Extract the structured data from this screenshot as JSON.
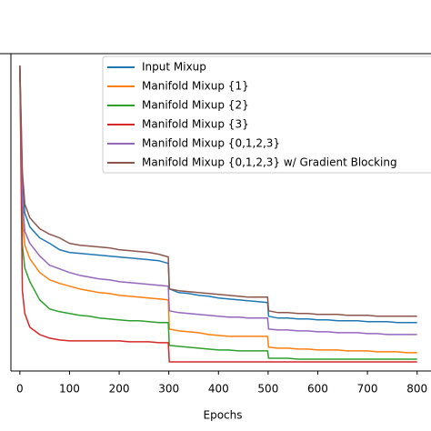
{
  "chart_data": {
    "type": "line",
    "xlabel": "Epochs",
    "x": [
      0,
      5,
      10,
      20,
      40,
      60,
      80,
      100,
      120,
      140,
      160,
      180,
      200,
      220,
      240,
      260,
      280,
      299,
      301,
      320,
      340,
      360,
      380,
      400,
      420,
      440,
      460,
      480,
      499,
      501,
      520,
      540,
      560,
      580,
      600,
      620,
      640,
      660,
      680,
      700,
      720,
      740,
      760,
      780,
      800
    ],
    "series": [
      {
        "name": "Input Mixup",
        "color": "#1f77b4",
        "values": [
          335,
          208,
          173,
          158,
          146,
          140,
          133,
          130,
          129,
          128,
          127,
          126,
          125,
          124,
          123,
          122,
          121,
          118,
          90,
          86,
          85,
          83,
          82,
          80,
          79,
          78,
          77,
          76,
          75,
          60,
          58,
          58,
          57,
          57,
          56,
          56,
          55,
          55,
          55,
          54,
          54,
          54,
          53,
          53,
          53
        ]
      },
      {
        "name": "Manifold Mixup {1}",
        "color": "#ff7f0e",
        "values": [
          335,
          168,
          138,
          123,
          108,
          100,
          96,
          93,
          90,
          88,
          86,
          85,
          83,
          82,
          81,
          80,
          79,
          78,
          46,
          44,
          43,
          42,
          40,
          39,
          38,
          38,
          38,
          38,
          38,
          26,
          25,
          25,
          24,
          24,
          23,
          23,
          23,
          22,
          22,
          22,
          21,
          21,
          21,
          20,
          20
        ]
      },
      {
        "name": "Manifold Mixup {2}",
        "color": "#2ca02c",
        "values": [
          335,
          138,
          113,
          98,
          78,
          68,
          65,
          63,
          61,
          60,
          58,
          57,
          56,
          55,
          55,
          54,
          53,
          53,
          28,
          27,
          26,
          25,
          24,
          23,
          23,
          22,
          22,
          22,
          22,
          14,
          14,
          14,
          13,
          13,
          13,
          13,
          13,
          13,
          13,
          13,
          13,
          13,
          13,
          13,
          13
        ]
      },
      {
        "name": "Manifold Mixup {3}",
        "color": "#d62728",
        "values": [
          335,
          88,
          63,
          48,
          40,
          36,
          34,
          33,
          33,
          33,
          33,
          33,
          33,
          32,
          32,
          32,
          31,
          31,
          10,
          10,
          10,
          10,
          10,
          10,
          10,
          10,
          10,
          10,
          10,
          10,
          10,
          10,
          10,
          10,
          10,
          10,
          10,
          10,
          10,
          10,
          10,
          10,
          10,
          10,
          10
        ]
      },
      {
        "name": "Manifold Mixup {0,1,2,3}",
        "color": "#9467bd",
        "values": [
          335,
          188,
          153,
          140,
          126,
          116,
          112,
          108,
          105,
          103,
          101,
          100,
          98,
          97,
          96,
          95,
          94,
          93,
          66,
          64,
          63,
          62,
          61,
          60,
          59,
          59,
          58,
          58,
          58,
          46,
          45,
          45,
          44,
          44,
          43,
          43,
          42,
          42,
          42,
          41,
          41,
          40,
          40,
          40,
          40
        ]
      },
      {
        "name": "Manifold Mixup {0,1,2,3} w/ Gradient Blocking",
        "color": "#8c564b",
        "values": [
          335,
          218,
          183,
          168,
          156,
          150,
          146,
          140,
          138,
          137,
          136,
          135,
          133,
          132,
          131,
          130,
          128,
          125,
          90,
          88,
          87,
          86,
          85,
          84,
          83,
          82,
          81,
          81,
          81,
          66,
          64,
          64,
          63,
          63,
          62,
          62,
          62,
          61,
          61,
          61,
          60,
          60,
          60,
          60,
          60
        ]
      }
    ],
    "xlim": [
      -18,
      828
    ],
    "xticks": [
      0,
      100,
      200,
      300,
      400,
      500,
      600,
      700,
      800
    ],
    "ylim": [
      0,
      348
    ],
    "legend": "upper right"
  }
}
